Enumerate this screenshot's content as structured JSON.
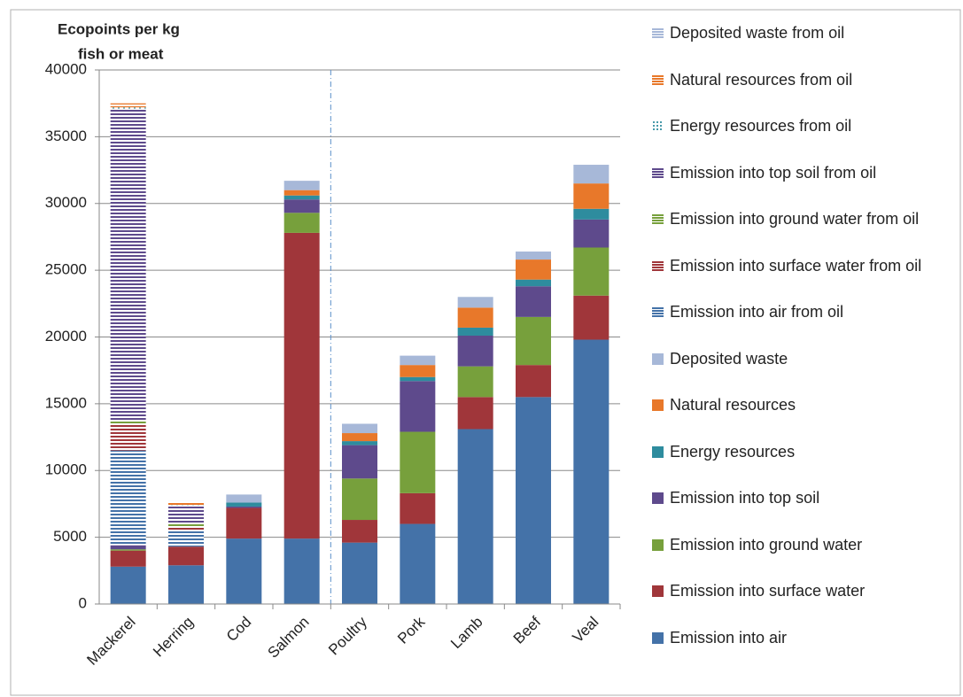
{
  "chart_data": {
    "type": "stacked_bar",
    "ylabel_lines": [
      "Ecopoints per kg",
      "fish or meat"
    ],
    "categories": [
      "Mackerel",
      "Herring",
      "Cod",
      "Salmon",
      "Poultry",
      "Pork",
      "Lamb",
      "Beef",
      "Veal"
    ],
    "ylim": [
      0,
      40000
    ],
    "yticks": [
      0,
      5000,
      10000,
      15000,
      20000,
      25000,
      30000,
      35000,
      40000
    ],
    "grid": true,
    "series": [
      {
        "name": "Emission into air",
        "color": "#4472a8",
        "pattern": "solid",
        "values": [
          2800,
          2900,
          4900,
          4900,
          4600,
          6000,
          13100,
          15500,
          19800
        ]
      },
      {
        "name": "Emission into surface water",
        "color": "#a0363a",
        "pattern": "solid",
        "values": [
          1200,
          1400,
          2300,
          22900,
          1700,
          2300,
          2400,
          2400,
          3300
        ]
      },
      {
        "name": "Emission into ground water",
        "color": "#77a03c",
        "pattern": "solid",
        "values": [
          100,
          0,
          0,
          1500,
          3100,
          4600,
          2300,
          3600,
          3600
        ]
      },
      {
        "name": "Emission into top soil",
        "color": "#5e4a8c",
        "pattern": "solid",
        "values": [
          300,
          0,
          100,
          1000,
          2500,
          3800,
          2300,
          2300,
          2100
        ]
      },
      {
        "name": "Energy resources",
        "color": "#2e8c9e",
        "pattern": "solid",
        "values": [
          0,
          0,
          300,
          300,
          300,
          300,
          600,
          500,
          800
        ]
      },
      {
        "name": "Natural resources",
        "color": "#e8782a",
        "pattern": "solid",
        "values": [
          0,
          0,
          0,
          400,
          600,
          900,
          1500,
          1500,
          1900
        ]
      },
      {
        "name": "Deposited waste",
        "color": "#a7b8d8",
        "pattern": "solid",
        "values": [
          0,
          0,
          600,
          700,
          700,
          700,
          800,
          600,
          1400
        ]
      },
      {
        "name": "Emission into air from oil",
        "color": "#4472a8",
        "pattern": "stripes",
        "values": [
          7100,
          1200,
          0,
          0,
          0,
          0,
          0,
          0,
          0
        ]
      },
      {
        "name": "Emission into surface water from oil",
        "color": "#a0363a",
        "pattern": "stripes",
        "values": [
          2000,
          300,
          0,
          0,
          0,
          0,
          0,
          0,
          0
        ]
      },
      {
        "name": "Emission into ground water from oil",
        "color": "#77a03c",
        "pattern": "stripes",
        "values": [
          200,
          300,
          0,
          0,
          0,
          0,
          0,
          0,
          0
        ]
      },
      {
        "name": "Emission into top soil from oil",
        "color": "#5e4a8c",
        "pattern": "stripes",
        "values": [
          23400,
          1200,
          0,
          0,
          0,
          0,
          0,
          0,
          0
        ]
      },
      {
        "name": "Energy resources from oil",
        "color": "#2e8c9e",
        "pattern": "dots",
        "values": [
          100,
          100,
          0,
          0,
          0,
          0,
          0,
          0,
          0
        ]
      },
      {
        "name": "Natural resources from oil",
        "color": "#e8782a",
        "pattern": "stripes",
        "values": [
          300,
          200,
          0,
          0,
          0,
          0,
          0,
          0,
          0
        ]
      },
      {
        "name": "Deposited waste from oil",
        "color": "#a7b8d8",
        "pattern": "stripes",
        "values": [
          0,
          100,
          0,
          0,
          0,
          0,
          0,
          0,
          0
        ]
      }
    ]
  }
}
